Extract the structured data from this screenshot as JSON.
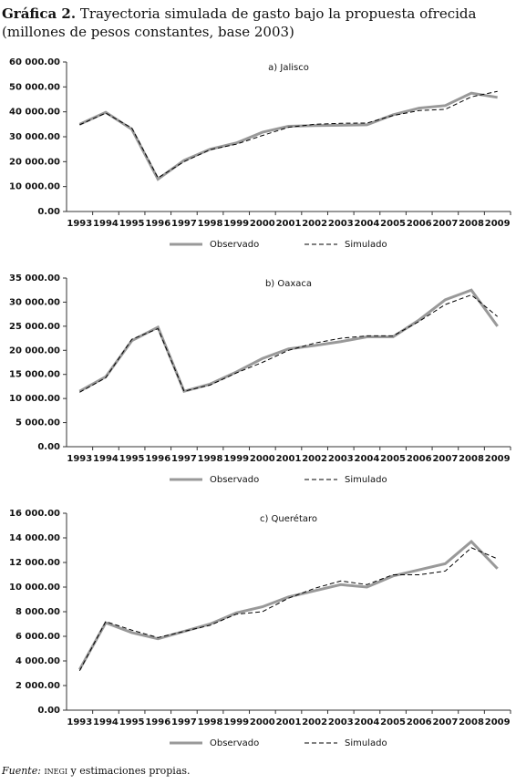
{
  "title": {
    "label": "Gráfica 2.",
    "text": "Trayectoria simulada de gasto bajo la propuesta ofrecida",
    "subtext": "(millones de pesos constantes, base 2003)"
  },
  "chart_data": [
    {
      "type": "line",
      "title": "a) Jalisco",
      "categories": [
        "1993",
        "1994",
        "1995",
        "1996",
        "1997",
        "1998",
        "1999",
        "2000",
        "2001",
        "2002",
        "2003",
        "2004",
        "2005",
        "2006",
        "2007",
        "2008",
        "2009"
      ],
      "ylim": [
        0,
        60000
      ],
      "yticks": [
        {
          "value": 0,
          "label": "0.00"
        },
        {
          "value": 10000,
          "label": "10 000.00"
        },
        {
          "value": 20000,
          "label": "20 000.00"
        },
        {
          "value": 30000,
          "label": "30 000.00"
        },
        {
          "value": 40000,
          "label": "40 000.00"
        },
        {
          "value": 50000,
          "label": "50 000.00"
        },
        {
          "value": 60000,
          "label": "60 000.00"
        }
      ],
      "series": [
        {
          "name": "Observado",
          "color": "#999999",
          "line_style": "solid",
          "values": [
            35000,
            39800,
            33000,
            13000,
            20500,
            25000,
            27500,
            31800,
            34200,
            34500,
            34600,
            34800,
            38800,
            41500,
            42500,
            47500,
            45800
          ]
        },
        {
          "name": "Simulado",
          "color": "#000000",
          "line_style": "dashed",
          "values": [
            34800,
            39500,
            33500,
            13500,
            20000,
            24800,
            27000,
            30500,
            33800,
            35000,
            35400,
            35500,
            38500,
            40500,
            41000,
            46000,
            48200
          ]
        }
      ]
    },
    {
      "type": "line",
      "title": "b) Oaxaca",
      "categories": [
        "1993",
        "1994",
        "1995",
        "1996",
        "1997",
        "1998",
        "1999",
        "2000",
        "2001",
        "2002",
        "2003",
        "2004",
        "2005",
        "2006",
        "2007",
        "2008",
        "2009"
      ],
      "ylim": [
        0,
        35000
      ],
      "yticks": [
        {
          "value": 0,
          "label": "0.00"
        },
        {
          "value": 5000,
          "label": "5 000.00"
        },
        {
          "value": 10000,
          "label": "10 000.00"
        },
        {
          "value": 15000,
          "label": "15 000.00"
        },
        {
          "value": 20000,
          "label": "20 000.00"
        },
        {
          "value": 25000,
          "label": "25 000.00"
        },
        {
          "value": 30000,
          "label": "30 000.00"
        },
        {
          "value": 35000,
          "label": "35 000.00"
        }
      ],
      "series": [
        {
          "name": "Observado",
          "color": "#999999",
          "line_style": "solid",
          "values": [
            11500,
            14500,
            22000,
            24800,
            11500,
            13000,
            15500,
            18300,
            20300,
            21000,
            21800,
            22800,
            22800,
            26300,
            30500,
            32500,
            25000
          ]
        },
        {
          "name": "Simulado",
          "color": "#000000",
          "line_style": "dashed",
          "values": [
            11300,
            14300,
            22300,
            24500,
            11500,
            12800,
            15300,
            17500,
            20000,
            21500,
            22500,
            23000,
            23000,
            26000,
            29500,
            31500,
            27000
          ]
        }
      ]
    },
    {
      "type": "line",
      "title": "c) Querétaro",
      "categories": [
        "1993",
        "1994",
        "1995",
        "1996",
        "1997",
        "1998",
        "1999",
        "2000",
        "2001",
        "2002",
        "2003",
        "2004",
        "2005",
        "2006",
        "2007",
        "2008",
        "2009"
      ],
      "ylim": [
        0,
        16000
      ],
      "yticks": [
        {
          "value": 0,
          "label": "0.00"
        },
        {
          "value": 2000,
          "label": "2 000.00"
        },
        {
          "value": 4000,
          "label": "4 000.00"
        },
        {
          "value": 6000,
          "label": "6 000.00"
        },
        {
          "value": 8000,
          "label": "8 000.00"
        },
        {
          "value": 10000,
          "label": "10 000.00"
        },
        {
          "value": 12000,
          "label": "12 000.00"
        },
        {
          "value": 14000,
          "label": "14 000.00"
        },
        {
          "value": 16000,
          "label": "16 000.00"
        }
      ],
      "series": [
        {
          "name": "Observado",
          "color": "#999999",
          "line_style": "solid",
          "values": [
            3300,
            7100,
            6300,
            5800,
            6400,
            7000,
            7900,
            8400,
            9200,
            9700,
            10200,
            10000,
            10900,
            11400,
            11900,
            13700,
            11500
          ]
        },
        {
          "name": "Simulado",
          "color": "#000000",
          "line_style": "dashed",
          "values": [
            3200,
            7200,
            6500,
            5900,
            6400,
            6900,
            7800,
            8000,
            9100,
            9900,
            10500,
            10200,
            11000,
            11000,
            11300,
            13200,
            12300
          ]
        }
      ]
    }
  ],
  "source": {
    "label": "Fuente:",
    "org": "inegi",
    "text": "y estimaciones propias."
  }
}
